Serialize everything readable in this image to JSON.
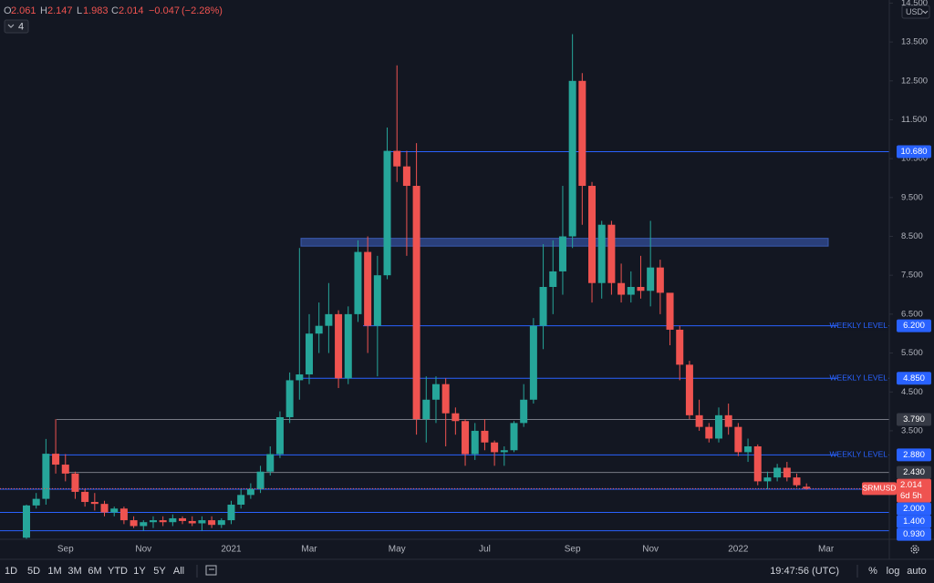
{
  "chart_data": {
    "type": "candlestick",
    "categories": [
      null,
      null,
      null,
      null,
      "Sep",
      null,
      null,
      null,
      null,
      null,
      null,
      null,
      "Nov",
      null,
      null,
      null,
      null,
      null,
      null,
      null,
      null,
      "2021",
      null,
      null,
      null,
      null,
      null,
      null,
      null,
      "Mar",
      null,
      null,
      null,
      null,
      null,
      null,
      null,
      null,
      "May",
      null,
      null,
      null,
      null,
      null,
      null,
      null,
      null,
      "Jul",
      null,
      null,
      null,
      null,
      null,
      null,
      null,
      null,
      "Sep",
      null,
      null,
      null,
      null,
      null,
      null,
      null,
      "Nov",
      null,
      null,
      null,
      null,
      null,
      null,
      null,
      null,
      "2022",
      null,
      null,
      null,
      null,
      null,
      null,
      null,
      null,
      "Mar"
    ],
    "open": [
      0.75,
      1.58,
      1.75,
      2.91,
      2.63,
      2.4,
      1.93,
      1.67,
      1.62,
      1.4,
      1.5,
      1.2,
      1.05,
      1.15,
      1.2,
      1.15,
      1.25,
      1.18,
      1.12,
      1.2,
      1.08,
      1.2,
      1.6,
      1.85,
      2.0,
      2.45,
      2.9,
      3.85,
      4.8,
      4.95,
      6.0,
      6.2,
      6.5,
      4.85,
      6.5,
      8.1,
      6.2,
      7.5,
      10.7,
      10.3,
      9.8,
      3.8,
      4.3,
      4.7,
      3.95,
      3.75,
      2.9,
      3.5,
      3.2,
      2.95,
      3.0,
      3.7,
      4.3,
      6.2,
      7.2,
      7.6,
      8.5,
      12.5,
      9.8,
      7.3,
      8.8,
      7.3,
      7.0,
      7.2,
      7.1,
      7.7,
      7.05,
      6.1,
      5.2,
      3.9,
      3.6,
      3.3,
      3.9,
      3.6,
      2.95,
      3.1,
      2.2,
      2.3,
      2.55,
      2.3,
      2.061,
      null,
      null
    ],
    "high": [
      1.6,
      1.9,
      3.29,
      3.8,
      2.9,
      2.45,
      2.0,
      1.9,
      1.7,
      1.55,
      1.55,
      1.3,
      1.2,
      1.3,
      1.3,
      1.35,
      1.3,
      1.3,
      1.3,
      1.3,
      1.25,
      1.7,
      2.0,
      2.15,
      2.6,
      3.1,
      4.0,
      5.0,
      8.2,
      6.5,
      6.8,
      7.3,
      6.6,
      6.7,
      8.4,
      8.5,
      8.0,
      11.3,
      12.9,
      10.7,
      10.9,
      4.9,
      4.9,
      4.85,
      4.1,
      3.8,
      3.7,
      3.8,
      3.25,
      3.1,
      3.75,
      4.7,
      6.4,
      8.3,
      8.4,
      9.8,
      13.7,
      12.7,
      9.9,
      8.9,
      8.9,
      7.8,
      7.6,
      8.0,
      8.9,
      7.9,
      7.0,
      6.2,
      5.3,
      4.3,
      3.7,
      4.1,
      4.2,
      3.7,
      3.3,
      3.15,
      2.45,
      2.65,
      2.7,
      2.4,
      2.147,
      null,
      null
    ],
    "low": [
      0.72,
      1.5,
      1.6,
      2.4,
      2.2,
      1.75,
      1.55,
      1.45,
      1.3,
      1.3,
      1.1,
      1.0,
      0.93,
      1.0,
      1.05,
      1.05,
      1.1,
      1.05,
      0.93,
      1.0,
      1.0,
      1.1,
      1.5,
      1.75,
      1.9,
      2.35,
      2.8,
      3.7,
      4.3,
      4.7,
      5.5,
      5.5,
      4.6,
      4.7,
      6.3,
      5.5,
      4.9,
      7.4,
      9.9,
      8.0,
      3.4,
      3.2,
      3.7,
      3.1,
      3.4,
      2.6,
      2.75,
      3.0,
      2.6,
      2.6,
      2.95,
      3.6,
      4.2,
      5.6,
      6.5,
      7.0,
      8.2,
      8.8,
      6.8,
      6.9,
      7.0,
      6.8,
      6.8,
      6.9,
      6.7,
      6.5,
      5.7,
      4.8,
      3.8,
      3.5,
      3.2,
      3.2,
      3.4,
      2.85,
      2.7,
      2.1,
      2.0,
      2.2,
      2.2,
      2.05,
      1.983,
      null,
      null
    ],
    "close": [
      1.58,
      1.75,
      2.91,
      2.63,
      2.4,
      1.93,
      1.67,
      1.62,
      1.4,
      1.5,
      1.2,
      1.05,
      1.15,
      1.2,
      1.15,
      1.25,
      1.18,
      1.12,
      1.2,
      1.08,
      1.2,
      1.6,
      1.85,
      2.0,
      2.45,
      2.9,
      3.85,
      4.8,
      4.95,
      6.0,
      6.2,
      6.5,
      4.85,
      6.5,
      8.1,
      6.2,
      7.5,
      10.7,
      10.3,
      9.8,
      3.8,
      4.3,
      4.7,
      3.95,
      3.75,
      2.9,
      3.5,
      3.2,
      2.95,
      3.0,
      3.7,
      4.3,
      6.2,
      7.2,
      7.6,
      8.5,
      12.5,
      9.8,
      7.3,
      8.8,
      7.3,
      7.0,
      7.2,
      7.1,
      7.7,
      7.05,
      6.1,
      5.2,
      3.9,
      3.6,
      3.3,
      3.9,
      3.6,
      2.95,
      3.1,
      2.2,
      2.3,
      2.55,
      2.3,
      2.1,
      2.014,
      null,
      null
    ],
    "up_color": "#26a69a",
    "down_color": "#ef5350",
    "ylim": [
      0.71,
      14.58
    ],
    "yticks": [
      {
        "value": 14.5,
        "label": "14.500"
      },
      {
        "value": 13.5,
        "label": "13.500"
      },
      {
        "value": 12.5,
        "label": "12.500"
      },
      {
        "value": 11.5,
        "label": "11.500"
      },
      {
        "value": 10.5,
        "label": "10.500"
      },
      {
        "value": 9.5,
        "label": "9.500"
      },
      {
        "value": 8.5,
        "label": "8.500"
      },
      {
        "value": 7.5,
        "label": "7.500"
      },
      {
        "value": 6.5,
        "label": "6.500"
      },
      {
        "value": 5.5,
        "label": "5.500"
      },
      {
        "value": 4.5,
        "label": "4.500"
      },
      {
        "value": 3.5,
        "label": "3.500"
      }
    ],
    "levels": [
      {
        "value": 10.68,
        "label": "10.680",
        "color": "#2962ff"
      },
      {
        "value": 6.2,
        "label": "6.200",
        "color": "#2962ff",
        "note": "WEEKLY LEVEL"
      },
      {
        "value": 4.85,
        "label": "4.850",
        "color": "#2962ff",
        "note": "WEEKLY LEVEL"
      },
      {
        "value": 3.79,
        "label": "3.790",
        "color": "#787b86"
      },
      {
        "value": 2.88,
        "label": "2.880",
        "color": "#2962ff",
        "note": "WEEKLY LEVEL"
      },
      {
        "value": 2.43,
        "label": "2.430",
        "color": "#787b86"
      },
      {
        "value": 2.0,
        "label": "2.000",
        "color": "#2962ff"
      },
      {
        "value": 1.4,
        "label": "1.400",
        "color": "#2962ff"
      },
      {
        "value": 0.93,
        "label": "0.930",
        "color": "#2962ff"
      }
    ],
    "zone": {
      "low": 8.25,
      "high": 8.45,
      "color": "#2a3f7a"
    },
    "symbol": "SRMUSD",
    "countdown": "6d 5h",
    "currency": "USD"
  },
  "ui": {
    "ohlc_labels": [
      "O",
      "H",
      "L",
      "C"
    ],
    "change": "−0.047",
    "change_pct": "(−2.28%)",
    "indicators": 4,
    "ranges": [
      "1D",
      "5D",
      "1M",
      "3M",
      "6M",
      "YTD",
      "1Y",
      "5Y",
      "All"
    ],
    "clock": "19:47:56 (UTC)",
    "toggles": [
      "%",
      "log",
      "auto"
    ]
  }
}
